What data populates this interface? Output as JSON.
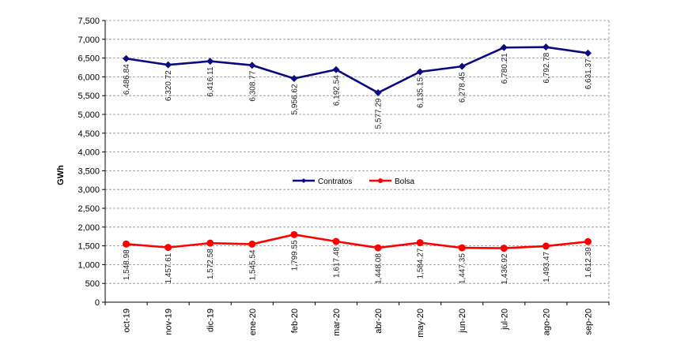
{
  "chart_data": {
    "type": "line",
    "categories": [
      "oct-19",
      "nov-19",
      "dic-19",
      "ene-20",
      "feb-20",
      "mar-20",
      "abr-20",
      "may-20",
      "jun-20",
      "jul-20",
      "ago-20",
      "sep-20"
    ],
    "series": [
      {
        "name": "Contratos",
        "color": "#0a0a80",
        "marker": "diamond",
        "values": [
          6486.84,
          6320.72,
          6416.11,
          6308.77,
          5956.62,
          6192.54,
          5577.29,
          6135.15,
          6278.45,
          6780.21,
          6792.78,
          6631.37
        ],
        "labels": [
          "6,486.84",
          "6,320.72",
          "6,416.11",
          "6,308.77",
          "5,956.62",
          "6,192.54",
          "5,577.29",
          "6,135.15",
          "6,278.45",
          "6,780.21",
          "6,792.78",
          "6,631.37"
        ]
      },
      {
        "name": "Bolsa",
        "color": "#ff0000",
        "marker": "circle",
        "values": [
          1548.98,
          1457.61,
          1572.58,
          1545.54,
          1799.55,
          1617.48,
          1448.08,
          1584.27,
          1447.35,
          1436.92,
          1493.47,
          1612.39
        ],
        "labels": [
          "1,548.98",
          "1,457.61",
          "1,572.58",
          "1,545.54",
          "1,799.55",
          "1,617.48",
          "1,448.08",
          "1,584.27",
          "1,447.35",
          "1,436.92",
          "1,493.47",
          "1,612.39"
        ]
      }
    ],
    "ylabel": "GWh",
    "ylim": [
      0,
      7500
    ],
    "ytick_step": 500,
    "grid": "horizontal-dashed",
    "legend": "center"
  }
}
